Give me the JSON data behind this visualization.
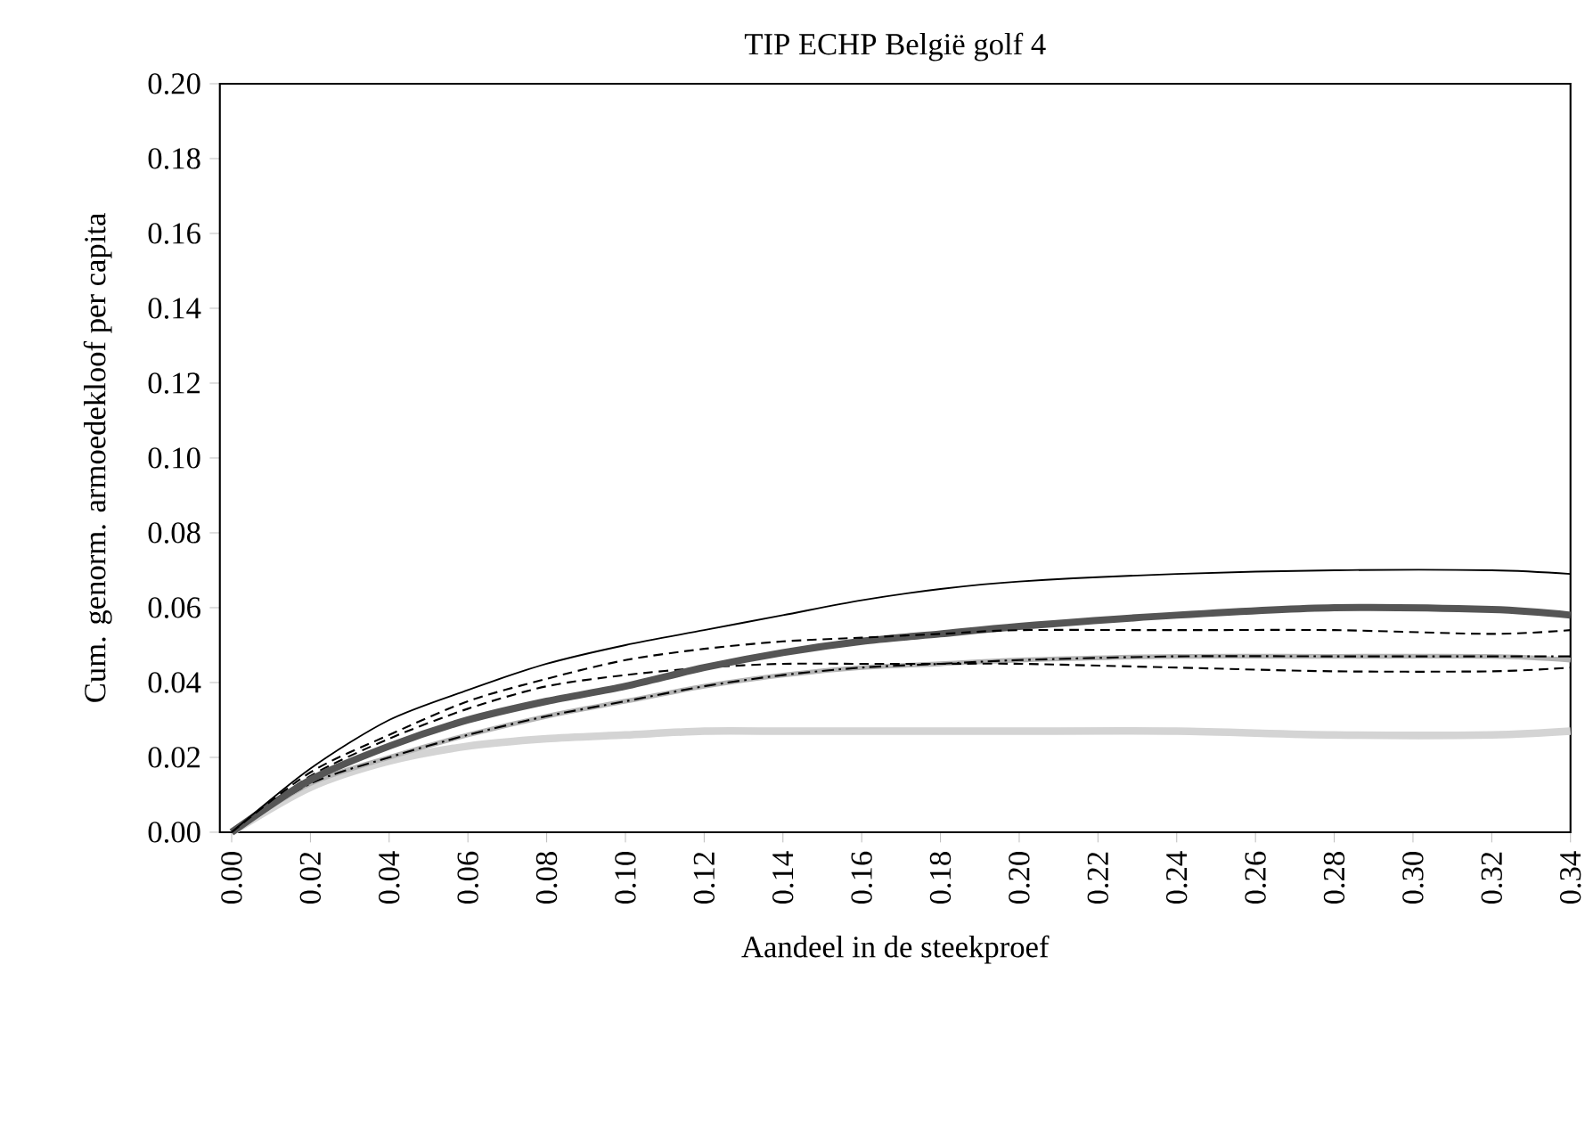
{
  "chart_data": {
    "type": "line",
    "title": "TIP ECHP België golf 4",
    "xlabel": "Aandeel in de steekproef",
    "ylabel": "Cum. genorm. armoedekloof per capita",
    "x": [
      0,
      0.02,
      0.04,
      0.06,
      0.08,
      0.1,
      0.12,
      0.14,
      0.16,
      0.18,
      0.2,
      0.24,
      0.28,
      0.32,
      0.34
    ],
    "series": [
      {
        "color": "#000000",
        "line_style": "solid",
        "values": [
          0,
          0.017,
          0.03,
          0.038,
          0.045,
          0.05,
          0.054,
          0.058,
          0.062,
          0.065,
          0.067,
          0.069,
          0.07,
          0.07,
          0.069
        ]
      },
      {
        "color": "#555555",
        "line_style": "solid",
        "values": [
          0,
          0.014,
          0.023,
          0.03,
          0.035,
          0.039,
          0.044,
          0.048,
          0.051,
          0.053,
          0.055,
          0.058,
          0.06,
          0.0595,
          0.058
        ]
      },
      {
        "color": "#000000",
        "line_style": "dashed",
        "values": [
          0,
          0.016,
          0.026,
          0.035,
          0.041,
          0.046,
          0.049,
          0.051,
          0.052,
          0.053,
          0.054,
          0.054,
          0.054,
          0.053,
          0.054
        ]
      },
      {
        "color": "#000000",
        "line_style": "dashed",
        "values": [
          0,
          0.015,
          0.025,
          0.033,
          0.039,
          0.042,
          0.044,
          0.045,
          0.045,
          0.045,
          0.045,
          0.044,
          0.043,
          0.043,
          0.044
        ]
      },
      {
        "color": "#000000",
        "line_style": "dashdot",
        "values": [
          0,
          0.013,
          0.02,
          0.026,
          0.031,
          0.035,
          0.039,
          0.042,
          0.044,
          0.045,
          0.046,
          0.047,
          0.047,
          0.047,
          0.047
        ]
      },
      {
        "color": "#b4b4b4",
        "line_style": "solid",
        "values": [
          0,
          0.013,
          0.02,
          0.026,
          0.031,
          0.035,
          0.039,
          0.042,
          0.044,
          0.045,
          0.046,
          0.047,
          0.047,
          0.047,
          0.046
        ]
      },
      {
        "color": "#d4d4d4",
        "line_style": "solid",
        "values": [
          0,
          0.012,
          0.019,
          0.023,
          0.025,
          0.026,
          0.027,
          0.027,
          0.027,
          0.027,
          0.027,
          0.027,
          0.026,
          0.026,
          0.027
        ]
      }
    ],
    "xlim": [
      -0.003,
      0.34
    ],
    "ylim": [
      0,
      0.2
    ],
    "xticks": [
      {
        "value": 0,
        "label": "0.00"
      },
      {
        "value": 0.02,
        "label": "0.02"
      },
      {
        "value": 0.04,
        "label": "0.04"
      },
      {
        "value": 0.06,
        "label": "0.06"
      },
      {
        "value": 0.08,
        "label": "0.08"
      },
      {
        "value": 0.1,
        "label": "0.10"
      },
      {
        "value": 0.12,
        "label": "0.12"
      },
      {
        "value": 0.14,
        "label": "0.14"
      },
      {
        "value": 0.16,
        "label": "0.16"
      },
      {
        "value": 0.18,
        "label": "0.18"
      },
      {
        "value": 0.2,
        "label": "0.20"
      },
      {
        "value": 0.22,
        "label": "0.22"
      },
      {
        "value": 0.24,
        "label": "0.24"
      },
      {
        "value": 0.26,
        "label": "0.26"
      },
      {
        "value": 0.28,
        "label": "0.28"
      },
      {
        "value": 0.3,
        "label": "0.30"
      },
      {
        "value": 0.32,
        "label": "0.32"
      },
      {
        "value": 0.34,
        "label": "0.34"
      }
    ],
    "yticks": [
      {
        "value": 0,
        "label": "0.00"
      },
      {
        "value": 0.02,
        "label": "0.02"
      },
      {
        "value": 0.04,
        "label": "0.04"
      },
      {
        "value": 0.06,
        "label": "0.06"
      },
      {
        "value": 0.08,
        "label": "0.08"
      },
      {
        "value": 0.1,
        "label": "0.10"
      },
      {
        "value": 0.12,
        "label": "0.12"
      },
      {
        "value": 0.14,
        "label": "0.14"
      },
      {
        "value": 0.16,
        "label": "0.16"
      },
      {
        "value": 0.18,
        "label": "0.18"
      },
      {
        "value": 0.2,
        "label": "0.20"
      }
    ]
  }
}
